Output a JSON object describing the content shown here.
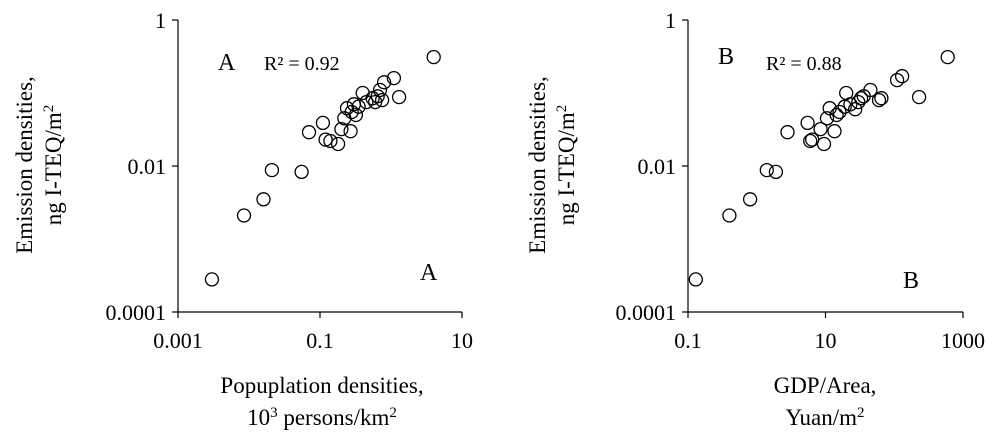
{
  "chart_data": [
    {
      "type": "scatter",
      "panel": "A",
      "xscale": "log",
      "yscale": "log",
      "xlim": [
        0.001,
        10
      ],
      "ylim": [
        0.0001,
        1
      ],
      "xticks": [
        "0.001",
        "0.1",
        "10"
      ],
      "yticks": [
        "1",
        "0.01",
        "0.0001"
      ],
      "xlabel_line1": "Popuplation densities,",
      "xlabel_line2_parts": [
        "10",
        "3",
        " persons/km",
        "2"
      ],
      "ylabel_line1": "Emission densities,",
      "ylabel_line2_parts": [
        "ng I-TEQ/m",
        "2"
      ],
      "label_top": "A",
      "label_bottom": "A",
      "r2": "R² = 0.92",
      "grid": false,
      "points": [
        {
          "x": 0.003,
          "y": 0.00028
        },
        {
          "x": 0.0085,
          "y": 0.0021
        },
        {
          "x": 0.016,
          "y": 0.0035
        },
        {
          "x": 0.021,
          "y": 0.0088
        },
        {
          "x": 0.055,
          "y": 0.0083
        },
        {
          "x": 0.07,
          "y": 0.029
        },
        {
          "x": 0.11,
          "y": 0.039
        },
        {
          "x": 0.12,
          "y": 0.023
        },
        {
          "x": 0.14,
          "y": 0.022
        },
        {
          "x": 0.18,
          "y": 0.02
        },
        {
          "x": 0.2,
          "y": 0.032
        },
        {
          "x": 0.22,
          "y": 0.045
        },
        {
          "x": 0.24,
          "y": 0.062
        },
        {
          "x": 0.27,
          "y": 0.03
        },
        {
          "x": 0.28,
          "y": 0.055
        },
        {
          "x": 0.3,
          "y": 0.07
        },
        {
          "x": 0.32,
          "y": 0.05
        },
        {
          "x": 0.35,
          "y": 0.065
        },
        {
          "x": 0.4,
          "y": 0.1
        },
        {
          "x": 0.45,
          "y": 0.075
        },
        {
          "x": 0.55,
          "y": 0.085
        },
        {
          "x": 0.6,
          "y": 0.075
        },
        {
          "x": 0.65,
          "y": 0.09
        },
        {
          "x": 0.7,
          "y": 0.11
        },
        {
          "x": 0.75,
          "y": 0.08
        },
        {
          "x": 0.8,
          "y": 0.14
        },
        {
          "x": 1.1,
          "y": 0.16
        },
        {
          "x": 1.3,
          "y": 0.088
        },
        {
          "x": 4.0,
          "y": 0.31
        }
      ]
    },
    {
      "type": "scatter",
      "panel": "B",
      "xscale": "log",
      "yscale": "log",
      "xlim": [
        0.1,
        1000
      ],
      "ylim": [
        0.0001,
        1
      ],
      "xticks": [
        "0.1",
        "10",
        "1000"
      ],
      "yticks": [
        "1",
        "0.01",
        "0.0001"
      ],
      "xlabel_line1": "GDP/Area,",
      "xlabel_line2_parts": [
        "Yuan/m",
        "2"
      ],
      "ylabel_line1": "Emission densities,",
      "ylabel_line2_parts": [
        "ng I-TEQ/m",
        "2"
      ],
      "label_top": "B",
      "label_bottom": "B",
      "r2": "R² = 0.88",
      "grid": false,
      "points": [
        {
          "x": 0.13,
          "y": 0.00028
        },
        {
          "x": 0.4,
          "y": 0.0021
        },
        {
          "x": 0.8,
          "y": 0.0035
        },
        {
          "x": 1.4,
          "y": 0.0088
        },
        {
          "x": 1.9,
          "y": 0.0083
        },
        {
          "x": 2.8,
          "y": 0.029
        },
        {
          "x": 5.5,
          "y": 0.039
        },
        {
          "x": 6.0,
          "y": 0.022
        },
        {
          "x": 6.4,
          "y": 0.023
        },
        {
          "x": 8.5,
          "y": 0.032
        },
        {
          "x": 9.5,
          "y": 0.02
        },
        {
          "x": 10.5,
          "y": 0.045
        },
        {
          "x": 11.5,
          "y": 0.062
        },
        {
          "x": 13.5,
          "y": 0.03
        },
        {
          "x": 14.5,
          "y": 0.05
        },
        {
          "x": 16.0,
          "y": 0.055
        },
        {
          "x": 19.0,
          "y": 0.065
        },
        {
          "x": 20.0,
          "y": 0.1
        },
        {
          "x": 23.0,
          "y": 0.07
        },
        {
          "x": 27.0,
          "y": 0.06
        },
        {
          "x": 30.0,
          "y": 0.075
        },
        {
          "x": 33.0,
          "y": 0.085
        },
        {
          "x": 36.0,
          "y": 0.09
        },
        {
          "x": 45.0,
          "y": 0.11
        },
        {
          "x": 60.0,
          "y": 0.08
        },
        {
          "x": 65.0,
          "y": 0.085
        },
        {
          "x": 110.0,
          "y": 0.15
        },
        {
          "x": 130.0,
          "y": 0.17
        },
        {
          "x": 230.0,
          "y": 0.088
        },
        {
          "x": 600.0,
          "y": 0.31
        }
      ]
    }
  ]
}
